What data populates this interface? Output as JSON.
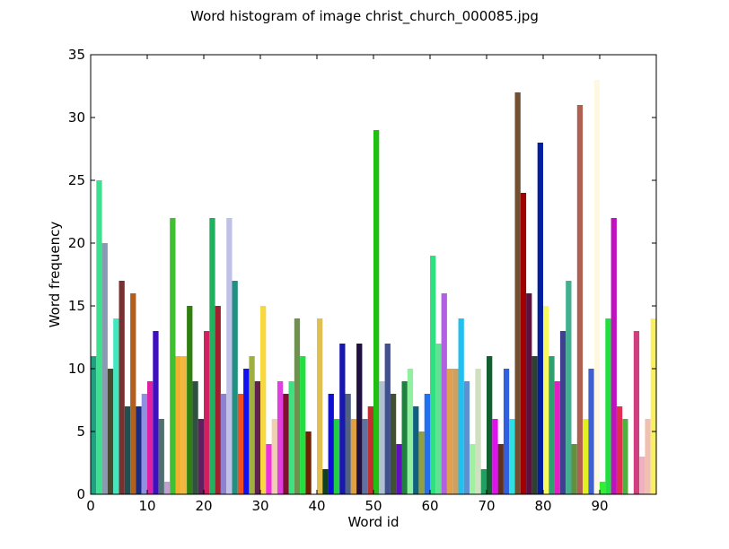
{
  "chart_data": {
    "type": "bar",
    "title": "Word histogram of image christ_church_000085.jpg",
    "xlabel": "Word id",
    "ylabel": "Word frequency",
    "x": [
      0,
      1,
      2,
      3,
      4,
      5,
      6,
      7,
      8,
      9,
      10,
      11,
      12,
      13,
      14,
      15,
      16,
      17,
      18,
      19,
      20,
      21,
      22,
      23,
      24,
      25,
      26,
      27,
      28,
      29,
      30,
      31,
      32,
      33,
      34,
      35,
      36,
      37,
      38,
      39,
      40,
      41,
      42,
      43,
      44,
      45,
      46,
      47,
      48,
      49,
      50,
      51,
      52,
      53,
      54,
      55,
      56,
      57,
      58,
      59,
      60,
      61,
      62,
      63,
      64,
      65,
      66,
      67,
      68,
      69,
      70,
      71,
      72,
      73,
      74,
      75,
      76,
      77,
      78,
      79,
      80,
      81,
      82,
      83,
      84,
      85,
      86,
      87,
      88,
      89,
      90,
      91,
      92,
      93,
      94,
      95,
      96,
      97,
      98,
      99
    ],
    "values": [
      11,
      25,
      20,
      10,
      14,
      17,
      7,
      16,
      7,
      8,
      9,
      13,
      6,
      1,
      22,
      11,
      11,
      15,
      9,
      6,
      13,
      22,
      15,
      8,
      22,
      17,
      8,
      10,
      11,
      9,
      15,
      4,
      6,
      9,
      8,
      9,
      14,
      11,
      5,
      0,
      14,
      2,
      8,
      6,
      12,
      8,
      6,
      12,
      6,
      7,
      29,
      9,
      12,
      8,
      4,
      9,
      10,
      7,
      5,
      8,
      19,
      12,
      16,
      10,
      10,
      14,
      9,
      4,
      10,
      2,
      11,
      6,
      4,
      10,
      6,
      32,
      24,
      16,
      11,
      28,
      15,
      11,
      9,
      13,
      17,
      4,
      31,
      6,
      10,
      33,
      1,
      14,
      22,
      7,
      6,
      0,
      13,
      3,
      6,
      14
    ],
    "colors": [
      "#20a080",
      "#3ee08f",
      "#8a9ab0",
      "#4a4a30",
      "#40e8c0",
      "#7a3030",
      "#205050",
      "#b06020",
      "#1a2a80",
      "#9090e0",
      "#e020a0",
      "#4010c0",
      "#507070",
      "#c0a0d0",
      "#40c030",
      "#f0b030",
      "#f0b840",
      "#308010",
      "#305040",
      "#602060",
      "#d02060",
      "#20b060",
      "#a02030",
      "#9080d0",
      "#c0c0e8",
      "#209080",
      "#f05020",
      "#1010f0",
      "#a0b040",
      "#602050",
      "#f8d840",
      "#f030e0",
      "#f0d0b0",
      "#e040e0",
      "#801030",
      "#40e080",
      "#709050",
      "#20e040",
      "#702000",
      "#ffffff",
      "#e0c050",
      "#104020",
      "#1010d0",
      "#20d040",
      "#1818b0",
      "#506080",
      "#e0a040",
      "#201040",
      "#6070a0",
      "#c03030",
      "#20c010",
      "#b0c0d0",
      "#405090",
      "#405030",
      "#6010c0",
      "#208040",
      "#90f0a0",
      "#106080",
      "#90a040",
      "#2070f0",
      "#30e080",
      "#60e090",
      "#b060e0",
      "#e0a050",
      "#d0a060",
      "#20c0f0",
      "#6090d0",
      "#a0f0a0",
      "#d0e0c0",
      "#20a060",
      "#106030",
      "#e010f0",
      "#603020",
      "#3060e0",
      "#30e0e0",
      "#705030",
      "#a00000",
      "#601040",
      "#304030",
      "#0020a0",
      "#f8f860",
      "#30a070",
      "#e020c0",
      "#404090",
      "#40b090",
      "#609040",
      "#b06050",
      "#e0f020",
      "#4060d0",
      "#fff8e0",
      "#30f030",
      "#20e040",
      "#c010c0",
      "#e03050",
      "#50b040",
      "#ffffff",
      "#d04080",
      "#f0b0c0",
      "#f0c0b0",
      "#f8f060"
    ],
    "xlim": [
      0,
      100
    ],
    "xticks": [
      0,
      10,
      20,
      30,
      40,
      50,
      60,
      70,
      80,
      90
    ],
    "ylim": [
      0,
      35
    ],
    "yticks": [
      0,
      5,
      10,
      15,
      20,
      25,
      30,
      35
    ]
  }
}
